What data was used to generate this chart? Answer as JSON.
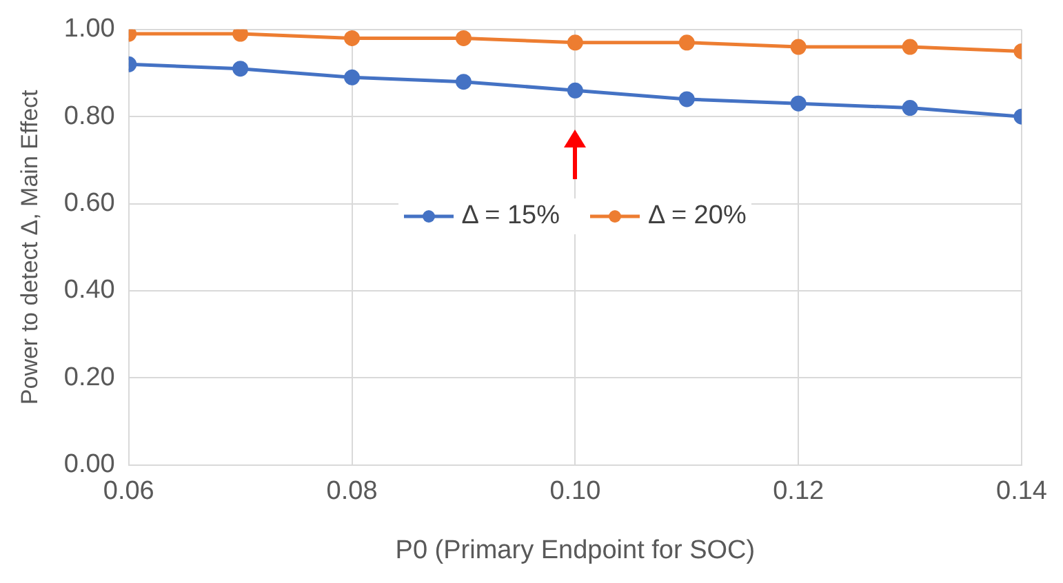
{
  "chart_data": {
    "type": "line",
    "xlabel": "P0 (Primary Endpoint for SOC)",
    "ylabel": "Power to detect Δ, Main Effect",
    "x": [
      0.06,
      0.07,
      0.08,
      0.09,
      0.1,
      0.11,
      0.12,
      0.13,
      0.14
    ],
    "series": [
      {
        "name": "Δ = 15%",
        "color": "#4472c4",
        "values": [
          0.92,
          0.91,
          0.89,
          0.88,
          0.86,
          0.84,
          0.83,
          0.82,
          0.8
        ]
      },
      {
        "name": "Δ = 20%",
        "color": "#ed7d31",
        "values": [
          0.99,
          0.99,
          0.98,
          0.98,
          0.97,
          0.97,
          0.96,
          0.96,
          0.95
        ]
      }
    ],
    "xlim": [
      0.06,
      0.14
    ],
    "xticks": [
      {
        "value": 0.06,
        "label": "0.06"
      },
      {
        "value": 0.08,
        "label": "0.08"
      },
      {
        "value": 0.1,
        "label": "0.10"
      },
      {
        "value": 0.12,
        "label": "0.12"
      },
      {
        "value": 0.14,
        "label": "0.14"
      }
    ],
    "ylim": [
      0,
      1
    ],
    "yticks": [
      {
        "value": 0,
        "label": "0.00"
      },
      {
        "value": 0.2,
        "label": "0.20"
      },
      {
        "value": 0.4,
        "label": "0.40"
      },
      {
        "value": 0.6,
        "label": "0.60"
      },
      {
        "value": 0.8,
        "label": "0.80"
      },
      {
        "value": 1,
        "label": "1.00"
      }
    ],
    "grid": true,
    "legend": "center",
    "marker": "circle",
    "line_style": "solid"
  }
}
